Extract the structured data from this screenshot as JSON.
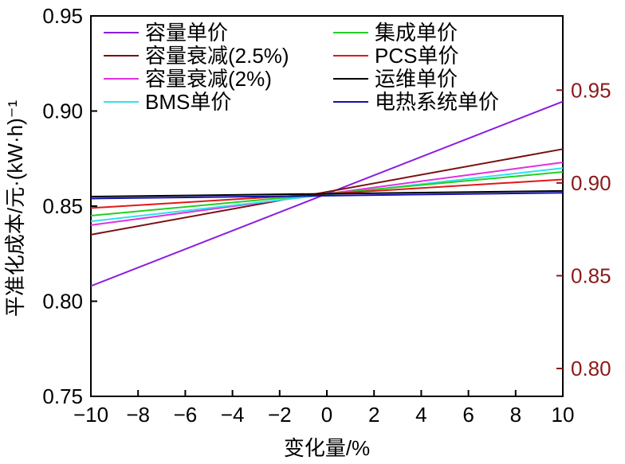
{
  "chart_data": {
    "type": "line",
    "title": "",
    "xlabel": "变化量/%",
    "ylabel": "平准化成本/元·(kW·h)⁻¹",
    "xlim": [
      -10,
      10
    ],
    "ylim": [
      0.75,
      0.95
    ],
    "y2lim": [
      0.785,
      0.99
    ],
    "x_ticks": [
      "−10",
      "−8",
      "−6",
      "−4",
      "−2",
      "0",
      "2",
      "4",
      "6",
      "8",
      "10"
    ],
    "x_tick_values": [
      -10,
      -8,
      -6,
      -4,
      -2,
      0,
      2,
      4,
      6,
      8,
      10
    ],
    "y_ticks": [
      "0.75",
      "0.80",
      "0.85",
      "0.90",
      "0.95"
    ],
    "y_tick_values": [
      0.75,
      0.8,
      0.85,
      0.9,
      0.95
    ],
    "y2_ticks": [
      "0.80",
      "0.85",
      "0.90",
      "0.95"
    ],
    "y2_tick_values": [
      0.8,
      0.85,
      0.9,
      0.95
    ],
    "grid": false,
    "legend_position": "top",
    "series": [
      {
        "name": "容量单价",
        "color": "#8B1CE0",
        "x": [
          -10,
          10
        ],
        "values": [
          0.808,
          0.905
        ]
      },
      {
        "name": "容量衰减(2.5%)",
        "color": "#7A1010",
        "x": [
          -10,
          10
        ],
        "values": [
          0.835,
          0.88
        ]
      },
      {
        "name": "容量衰减(2%)",
        "color": "#E030E0",
        "x": [
          -10,
          10
        ],
        "values": [
          0.84,
          0.873
        ]
      },
      {
        "name": "BMS单价",
        "color": "#30E0F0",
        "x": [
          -10,
          10
        ],
        "values": [
          0.842,
          0.87
        ]
      },
      {
        "name": "集成单价",
        "color": "#22D022",
        "x": [
          -10,
          10
        ],
        "values": [
          0.845,
          0.868
        ]
      },
      {
        "name": "PCS单价",
        "color": "#E01818",
        "x": [
          -10,
          10
        ],
        "values": [
          0.849,
          0.864
        ]
      },
      {
        "name": "运维单价",
        "color": "#000000",
        "x": [
          -10,
          10
        ],
        "values": [
          0.855,
          0.858
        ]
      },
      {
        "name": "电热系统单价",
        "color": "#1010B0",
        "x": [
          -10,
          10
        ],
        "values": [
          0.854,
          0.857
        ]
      }
    ]
  },
  "colors": {
    "axis": "#000000",
    "right_axis": "#8B1A1A"
  }
}
